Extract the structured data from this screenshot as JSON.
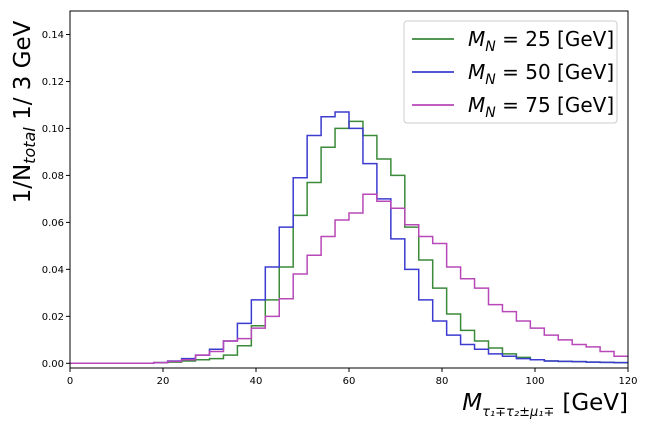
{
  "chart_data": {
    "type": "line",
    "title": "",
    "ylabel": "1/N_total 1/ 3 GeV",
    "ylabel_parts": {
      "a": "1/N",
      "sub": "total",
      "b": " 1/ 3 GeV"
    },
    "xlabel": "M_{τ1∓ τ2± μ1∓} [GeV]",
    "xlabel_parts": {
      "base": "M",
      "sub": "τ₁∓τ₂±μ₁∓",
      "unit": "[GeV]"
    },
    "xlim": [
      0,
      120
    ],
    "ylim": [
      -0.002,
      0.15
    ],
    "xticks": [
      "0",
      "20",
      "40",
      "60",
      "80",
      "100",
      "120"
    ],
    "yticks": [
      "0.00",
      "0.02",
      "0.04",
      "0.06",
      "0.08",
      "0.10",
      "0.12",
      "0.14"
    ],
    "bin_edges": [
      0,
      3,
      6,
      9,
      12,
      15,
      18,
      21,
      24,
      27,
      30,
      33,
      36,
      39,
      42,
      45,
      48,
      51,
      54,
      57,
      60,
      63,
      66,
      69,
      72,
      75,
      78,
      81,
      84,
      87,
      90,
      93,
      96,
      99,
      102,
      105,
      108,
      111,
      114,
      117,
      120
    ],
    "legend_position": "top-right",
    "grid": false,
    "series": [
      {
        "name": "M_N = 25 [GeV]",
        "label_base": "M",
        "label_sub": "N",
        "label_rest": " = 25 [GeV]",
        "color": "#3a8a3a",
        "values": [
          0.0,
          0.0,
          0.0,
          0.0,
          0.0,
          0.0,
          0.0003,
          0.0005,
          0.001,
          0.0015,
          0.002,
          0.0035,
          0.0075,
          0.016,
          0.027,
          0.041,
          0.063,
          0.077,
          0.092,
          0.1,
          0.103,
          0.097,
          0.087,
          0.08,
          0.058,
          0.044,
          0.032,
          0.021,
          0.014,
          0.0095,
          0.0065,
          0.004,
          0.0025,
          0.0015,
          0.001,
          0.0008,
          0.0007,
          0.0005,
          0.0004,
          0.0003
        ]
      },
      {
        "name": "M_N = 50 [GeV]",
        "label_base": "M",
        "label_sub": "N",
        "label_rest": " = 50 [GeV]",
        "color": "#3b3bd0",
        "values": [
          0.0,
          0.0,
          0.0,
          0.0,
          0.0,
          0.0,
          0.0003,
          0.001,
          0.002,
          0.0035,
          0.006,
          0.0095,
          0.017,
          0.027,
          0.041,
          0.058,
          0.079,
          0.097,
          0.105,
          0.107,
          0.1,
          0.085,
          0.07,
          0.053,
          0.04,
          0.027,
          0.018,
          0.012,
          0.008,
          0.006,
          0.004,
          0.003,
          0.002,
          0.0015,
          0.001,
          0.0008,
          0.0007,
          0.0005,
          0.0004,
          0.0003
        ]
      },
      {
        "name": "M_N = 75 [GeV]",
        "label_base": "M",
        "label_sub": "N",
        "label_rest": " = 75 [GeV]",
        "color": "#b848b8",
        "values": [
          0.0,
          0.0,
          0.0,
          0.0,
          0.0,
          0.0,
          0.0003,
          0.0008,
          0.0015,
          0.0035,
          0.005,
          0.0095,
          0.0105,
          0.015,
          0.02,
          0.0275,
          0.038,
          0.046,
          0.054,
          0.061,
          0.064,
          0.072,
          0.069,
          0.066,
          0.059,
          0.054,
          0.051,
          0.041,
          0.036,
          0.032,
          0.025,
          0.022,
          0.018,
          0.015,
          0.012,
          0.01,
          0.008,
          0.007,
          0.005,
          0.003
        ]
      }
    ]
  }
}
